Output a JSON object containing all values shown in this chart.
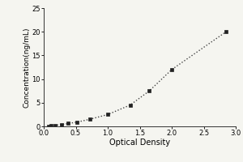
{
  "x_data": [
    0.07,
    0.12,
    0.18,
    0.28,
    0.38,
    0.52,
    0.72,
    1.0,
    1.35,
    1.65,
    2.0,
    2.85
  ],
  "y_data": [
    0.05,
    0.1,
    0.2,
    0.4,
    0.6,
    0.9,
    1.5,
    2.5,
    4.5,
    7.5,
    12.0,
    20.0
  ],
  "xlabel": "Optical Density",
  "ylabel": "Concentration(ng/mL)",
  "xlim": [
    0,
    3.0
  ],
  "ylim": [
    0,
    25
  ],
  "xticks": [
    0,
    0.5,
    1.0,
    1.5,
    2.0,
    2.5,
    3.0
  ],
  "yticks": [
    0,
    5,
    10,
    15,
    20,
    25
  ],
  "line_color": "#444444",
  "marker_color": "#222222",
  "background_color": "#f5f5f0",
  "xlabel_fontsize": 7,
  "ylabel_fontsize": 6.5,
  "tick_fontsize": 6,
  "figwidth": 3.0,
  "figheight": 2.0,
  "dpi": 100
}
